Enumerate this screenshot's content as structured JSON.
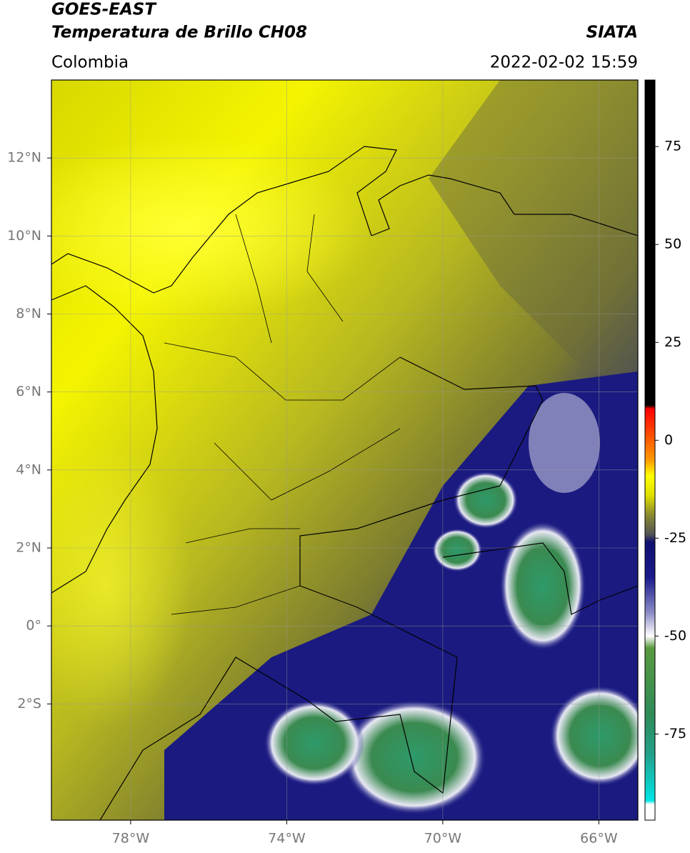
{
  "chart_data": {
    "type": "map",
    "title": "GOES-EAST",
    "subtitle": "Temperatura de Brillo CH08",
    "source": "SIATA",
    "region": "Colombia",
    "datetime": "2022-02-02 15:59",
    "xlim": [
      -80.03,
      -65.0
    ],
    "ylim": [
      -4.98,
      14.0
    ],
    "xticks": [
      {
        "value": -78,
        "label": "78°W"
      },
      {
        "value": -74,
        "label": "74°W"
      },
      {
        "value": -70,
        "label": "70°W"
      },
      {
        "value": -66,
        "label": "66°W"
      }
    ],
    "yticks": [
      {
        "value": 12,
        "label": "12°N"
      },
      {
        "value": 10,
        "label": "10°N"
      },
      {
        "value": 8,
        "label": "8°N"
      },
      {
        "value": 6,
        "label": "6°N"
      },
      {
        "value": 4,
        "label": "4°N"
      },
      {
        "value": 2,
        "label": "2°N"
      },
      {
        "value": 0,
        "label": "0°"
      },
      {
        "value": -2,
        "label": "2°S"
      }
    ],
    "grid": true,
    "colorbar": {
      "lim": [
        -97,
        92
      ],
      "ticks": [
        75,
        50,
        25,
        0,
        -25,
        -50,
        -75
      ],
      "stops": [
        {
          "value": -97,
          "color": "#ffffff"
        },
        {
          "value": -93,
          "color": "#ffffff"
        },
        {
          "value": -92,
          "color": "#00e5e5"
        },
        {
          "value": -80,
          "color": "#22a08a"
        },
        {
          "value": -70,
          "color": "#2e8b57"
        },
        {
          "value": -53,
          "color": "#5a9a40"
        },
        {
          "value": -50,
          "color": "#ffffff"
        },
        {
          "value": -44,
          "color": "#8c8cc8"
        },
        {
          "value": -35,
          "color": "#1a1a8c"
        },
        {
          "value": -26,
          "color": "#101070"
        },
        {
          "value": -24,
          "color": "#555555"
        },
        {
          "value": -19,
          "color": "#8a8a30"
        },
        {
          "value": -14,
          "color": "#e0e000"
        },
        {
          "value": -9,
          "color": "#ffff00"
        },
        {
          "value": -5,
          "color": "#ff9900"
        },
        {
          "value": 8,
          "color": "#ff0000"
        },
        {
          "value": 9,
          "color": "#000000"
        },
        {
          "value": 92,
          "color": "#000000"
        }
      ]
    }
  }
}
